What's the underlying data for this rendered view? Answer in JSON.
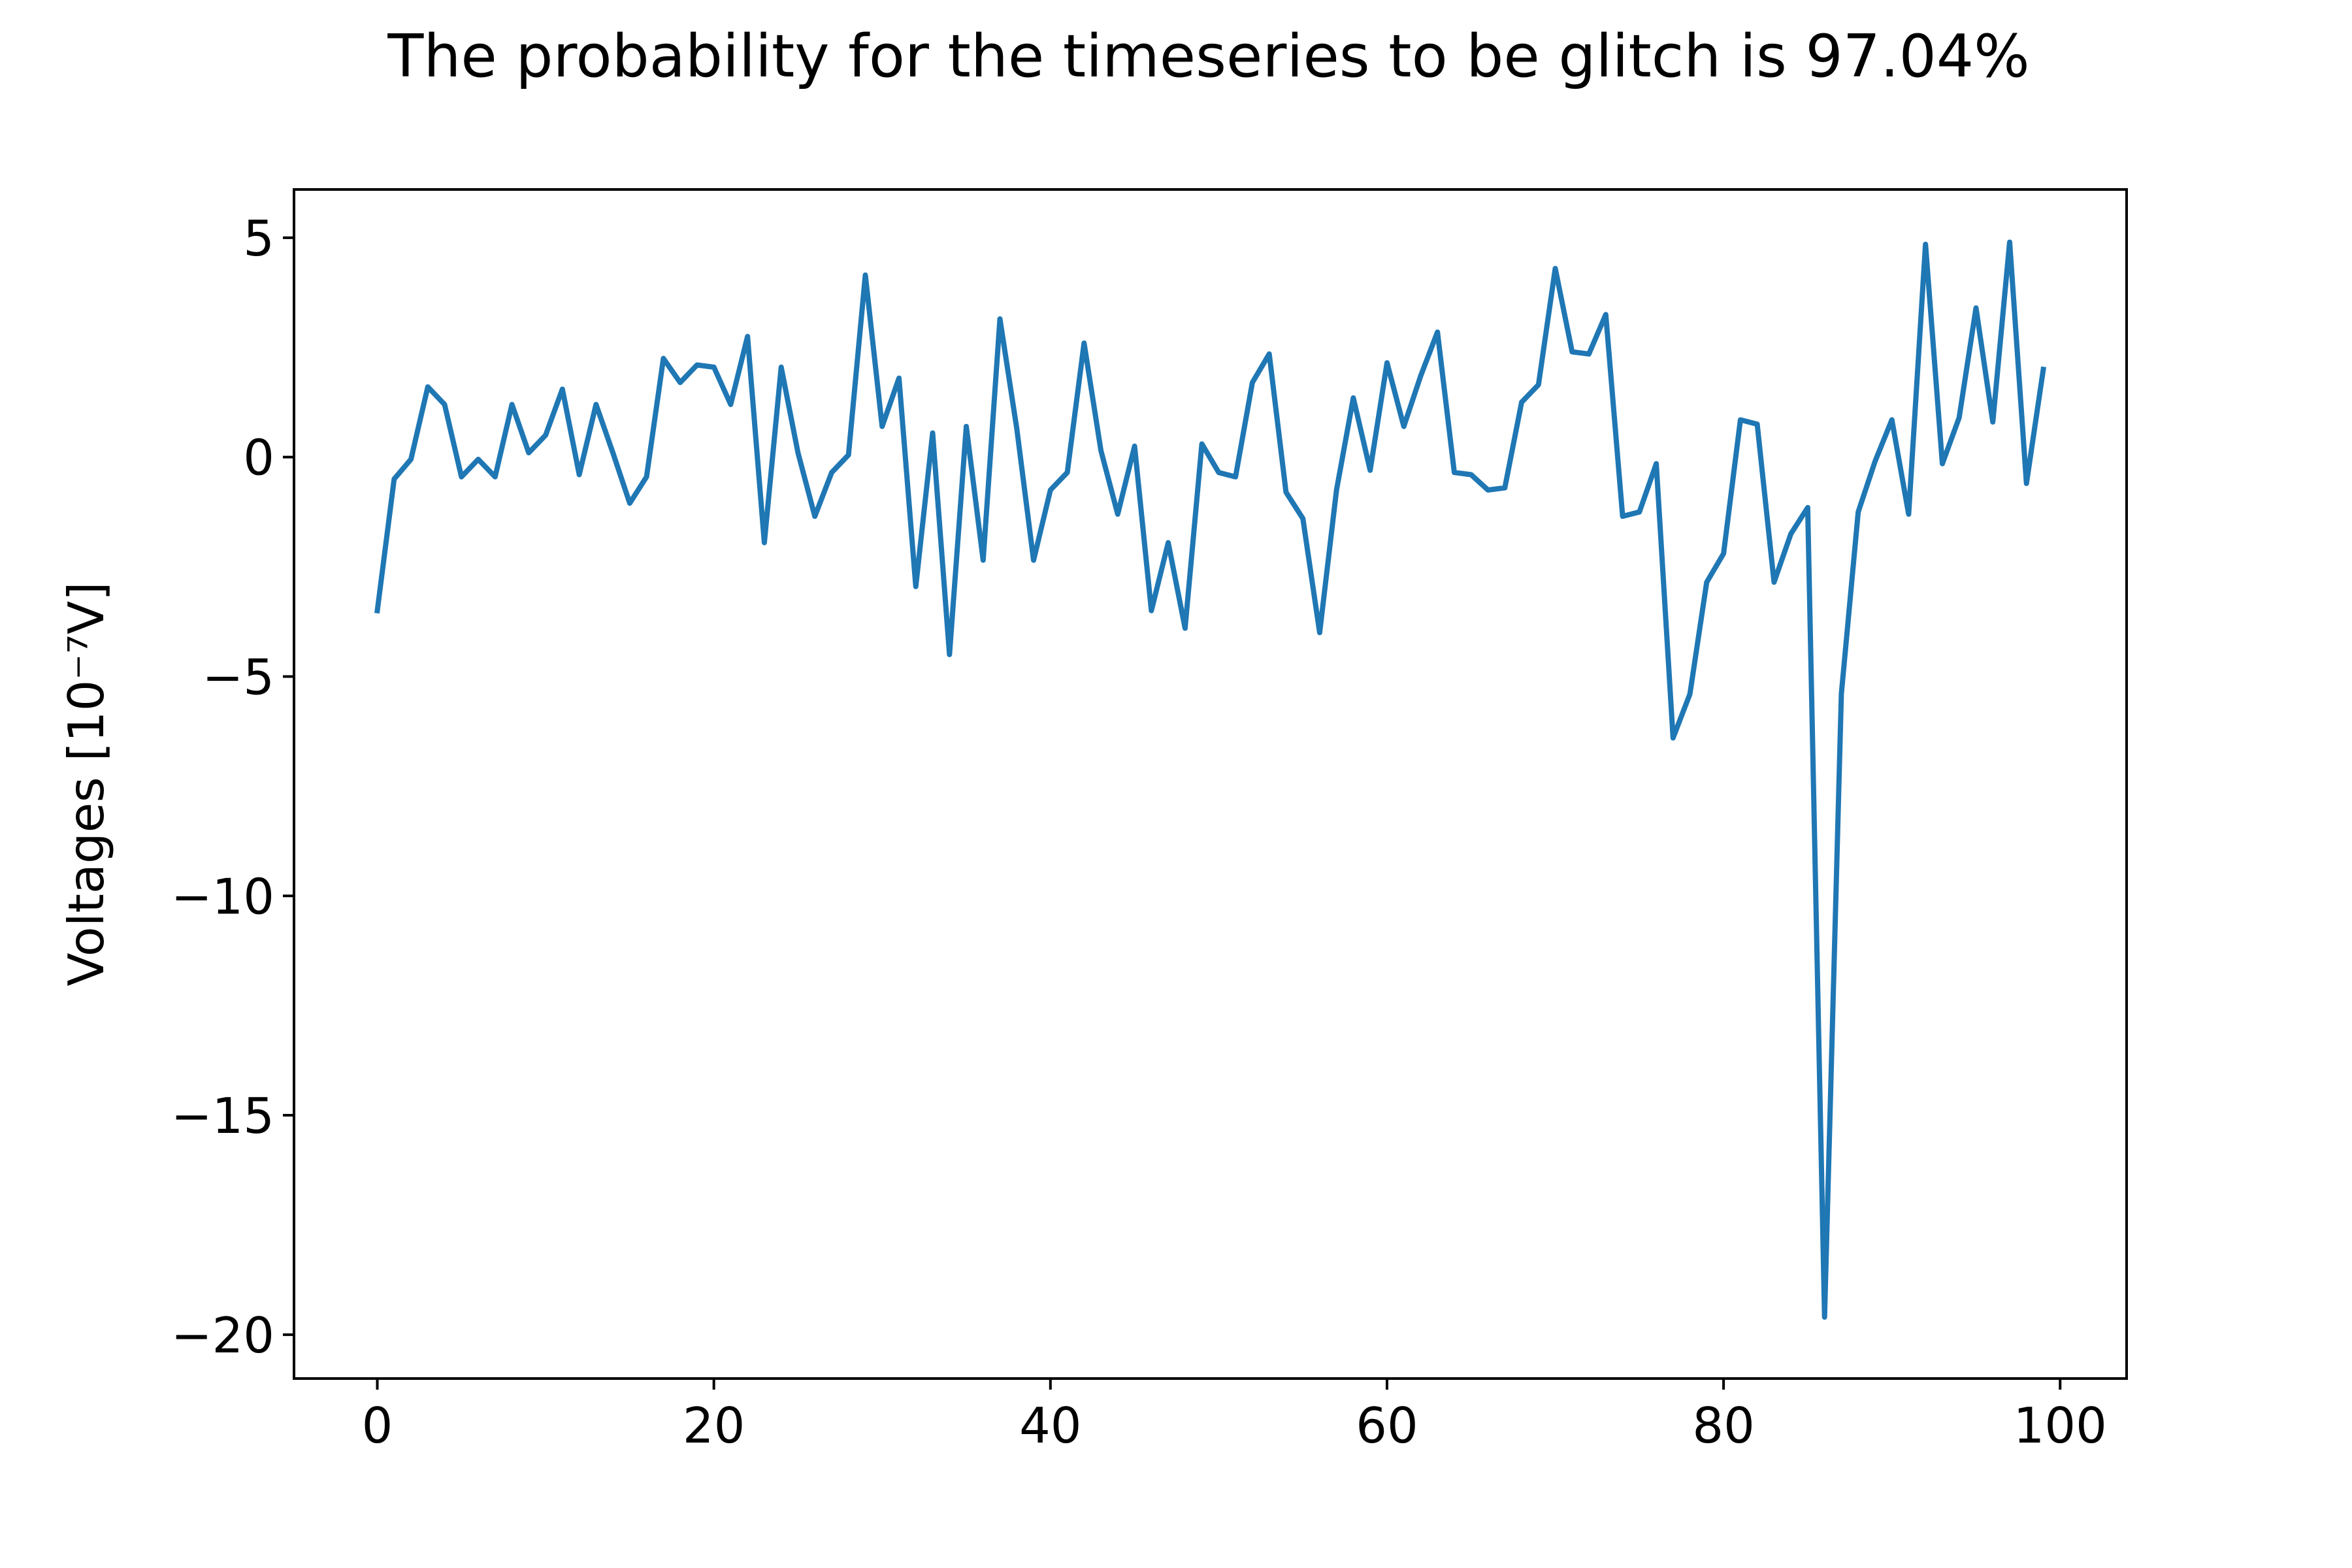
{
  "chart_data": {
    "type": "line",
    "title": "The probability for the timeseries to be glitch is 97.04%",
    "xlabel": "",
    "ylabel": "Voltages [10⁻⁷V]",
    "xlim": [
      -4.95,
      103.95
    ],
    "ylim": [
      -21.0,
      6.1
    ],
    "xticks": [
      0,
      20,
      40,
      60,
      80,
      100
    ],
    "yticks": [
      5,
      0,
      -5,
      -10,
      -15,
      -20
    ],
    "xtick_labels": [
      "0",
      "20",
      "40",
      "60",
      "80",
      "100"
    ],
    "ytick_labels": [
      "5",
      "0",
      "−5",
      "−10",
      "−15",
      "−20"
    ],
    "grid": false,
    "legend": "none",
    "series": [
      {
        "color": "#1f77b4",
        "x": [
          0,
          1,
          2,
          3,
          4,
          5,
          6,
          7,
          8,
          9,
          10,
          11,
          12,
          13,
          14,
          15,
          16,
          17,
          18,
          19,
          20,
          21,
          22,
          23,
          24,
          25,
          26,
          27,
          28,
          29,
          30,
          31,
          32,
          33,
          34,
          35,
          36,
          37,
          38,
          39,
          40,
          41,
          42,
          43,
          44,
          45,
          46,
          47,
          48,
          49,
          50,
          51,
          52,
          53,
          54,
          55,
          56,
          57,
          58,
          59,
          60,
          61,
          62,
          63,
          64,
          65,
          66,
          67,
          68,
          69,
          70,
          71,
          72,
          73,
          74,
          75,
          76,
          77,
          78,
          79,
          80,
          81,
          82,
          83,
          84,
          85,
          86,
          87,
          88,
          89,
          90,
          91,
          92,
          93,
          94,
          95,
          96,
          97,
          98,
          99
        ],
        "values": [
          -3.5,
          -0.5,
          -0.05,
          1.6,
          1.2,
          -0.45,
          -0.05,
          -0.45,
          1.2,
          0.1,
          0.5,
          1.55,
          -0.4,
          1.2,
          0.1,
          -1.05,
          -0.45,
          2.25,
          1.7,
          2.1,
          2.05,
          1.2,
          2.75,
          -1.95,
          2.05,
          0.1,
          -1.35,
          -0.35,
          0.05,
          4.15,
          0.7,
          1.8,
          -2.95,
          0.55,
          -4.5,
          0.7,
          -2.35,
          3.15,
          0.65,
          -2.35,
          -0.75,
          -0.35,
          2.6,
          0.15,
          -1.3,
          0.25,
          -3.5,
          -1.95,
          -3.9,
          0.3,
          -0.35,
          -0.45,
          1.7,
          2.35,
          -0.8,
          -1.4,
          -4.0,
          -0.75,
          1.35,
          -0.3,
          2.15,
          0.7,
          1.85,
          2.85,
          -0.35,
          -0.4,
          -0.75,
          -0.7,
          1.25,
          1.65,
          4.3,
          2.4,
          2.35,
          3.25,
          -1.35,
          -1.25,
          -0.15,
          -6.4,
          -5.4,
          -2.85,
          -2.2,
          0.85,
          0.75,
          -2.85,
          -1.75,
          -1.15,
          -19.6,
          -5.4,
          -1.25,
          -0.1,
          0.85,
          -1.3,
          4.85,
          -0.15,
          0.9,
          3.4,
          0.8,
          4.9,
          -0.6,
          2.0
        ]
      }
    ]
  }
}
